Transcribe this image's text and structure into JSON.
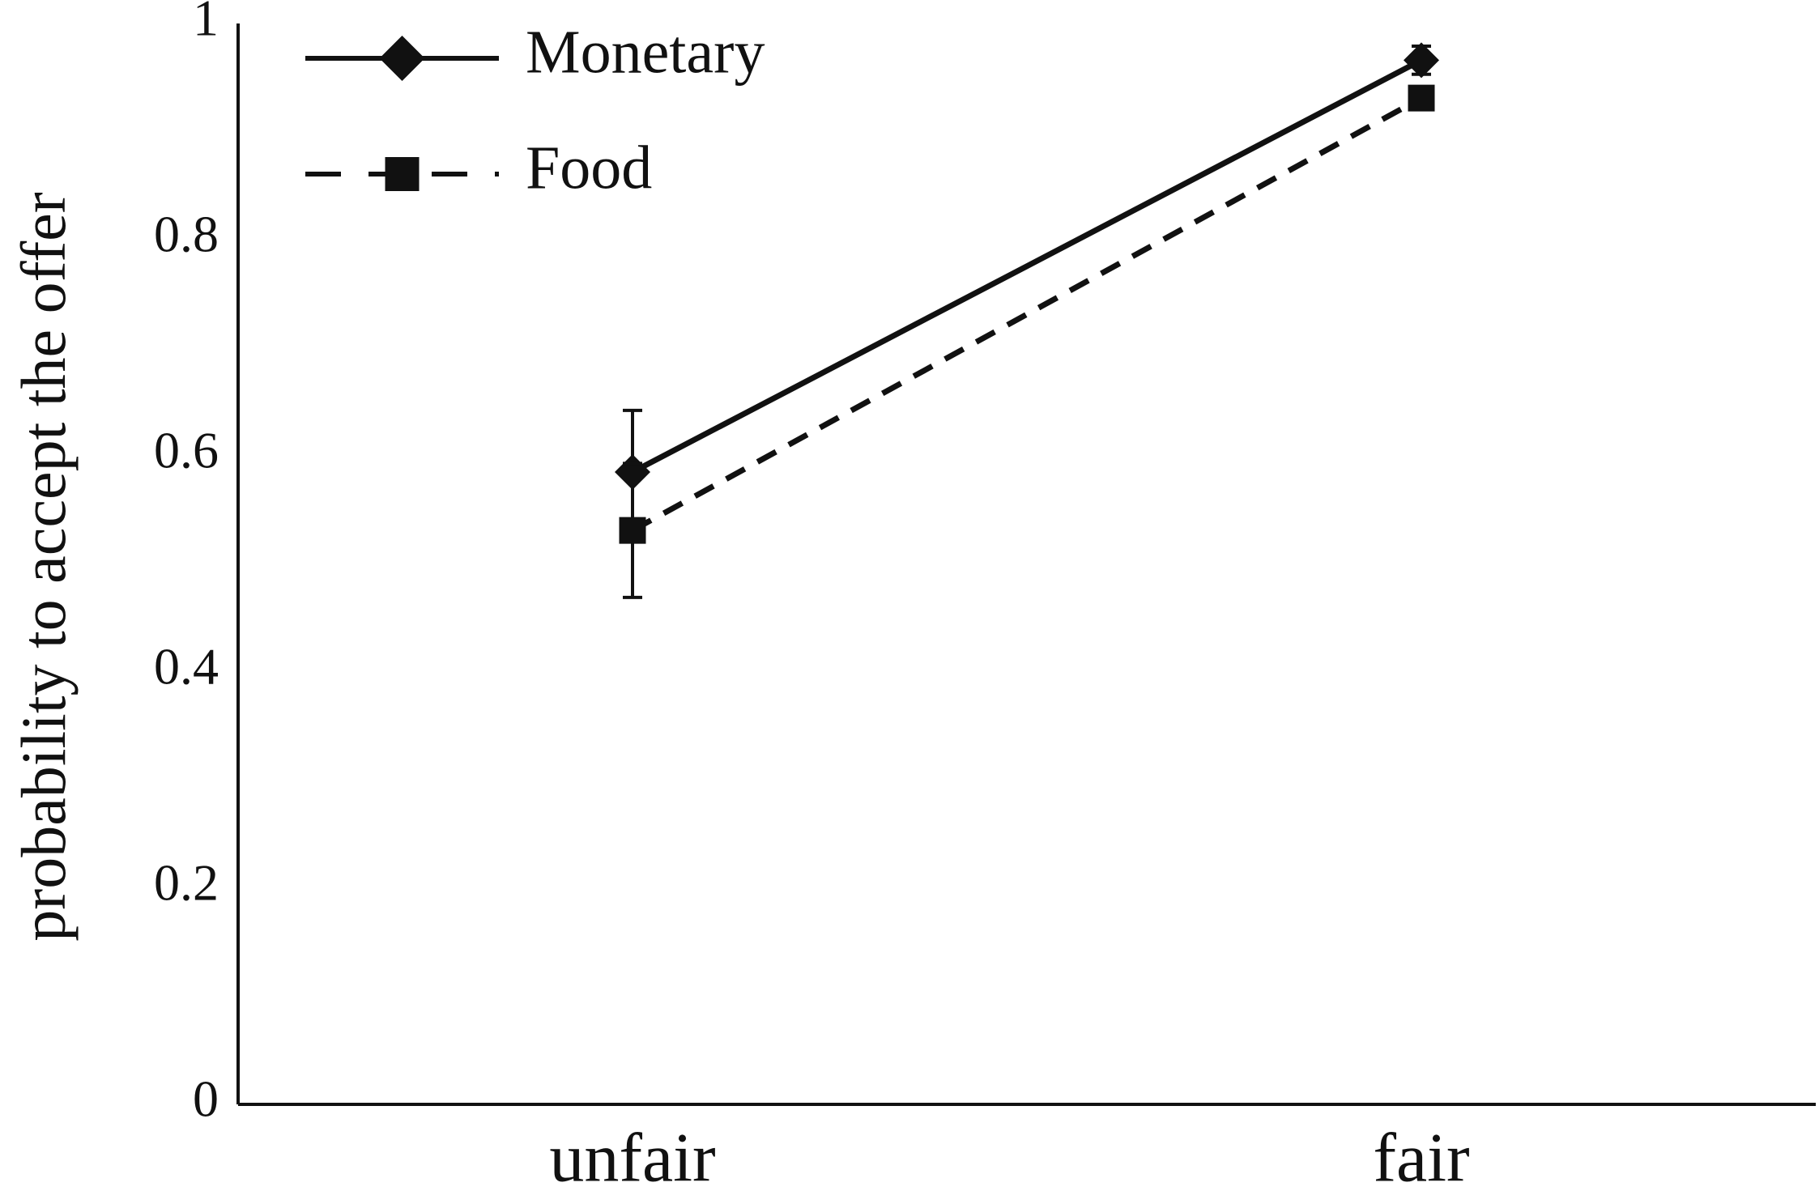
{
  "chart_data": {
    "type": "line",
    "ylabel": "probability to accept the offer",
    "categories": [
      "unfair",
      "fair"
    ],
    "series": [
      {
        "name": "Monetary",
        "color": "#111111",
        "dash": "solid",
        "marker": "diamond",
        "values": [
          0.585,
          0.966
        ],
        "errors": [
          0.057,
          0.013
        ]
      },
      {
        "name": "Food",
        "color": "#111111",
        "dash": "dashed",
        "marker": "square",
        "values": [
          0.531,
          0.931
        ],
        "errors": [
          0.062,
          0.01
        ]
      }
    ],
    "ylim": [
      0,
      1
    ],
    "yticks": [
      0,
      0.2,
      0.4,
      0.6,
      0.8,
      1
    ],
    "grid": false,
    "legend": "upper left"
  }
}
